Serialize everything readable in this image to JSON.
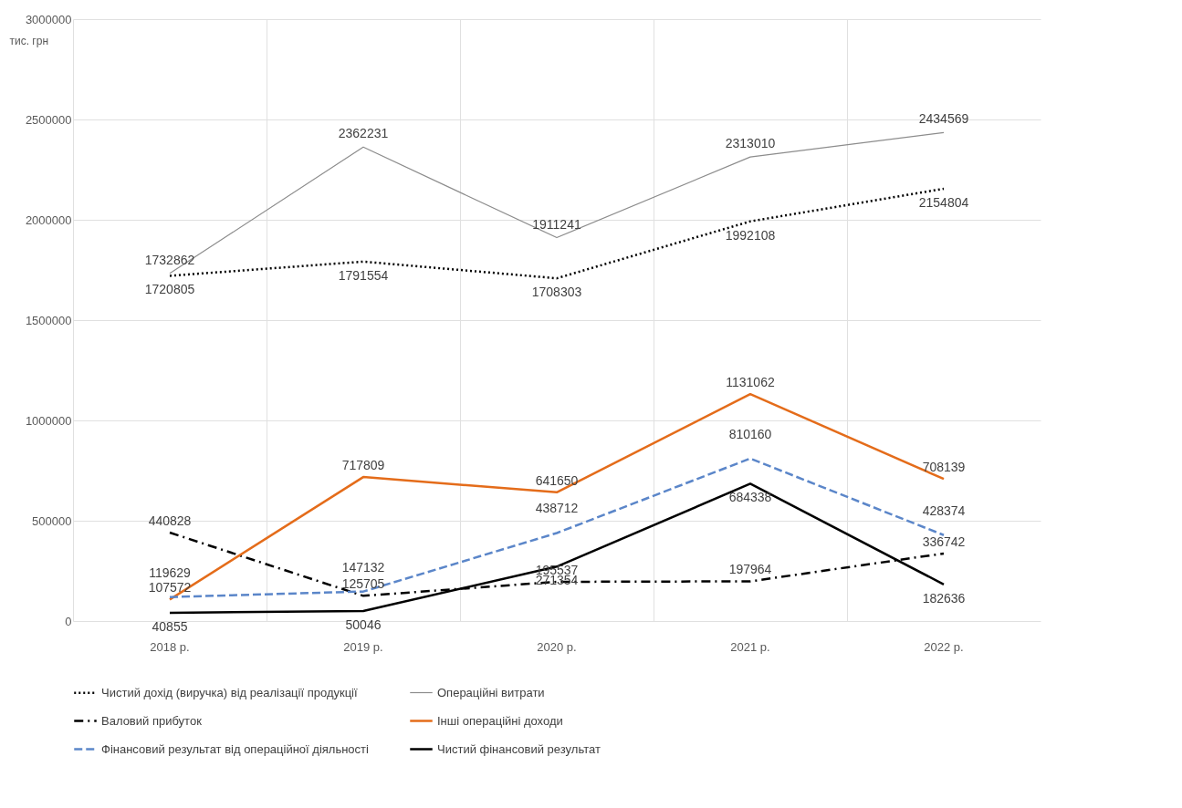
{
  "chart_data": {
    "type": "line",
    "ylabel": "тис. грн",
    "categories": [
      "2018 р.",
      "2019 р.",
      "2020 р.",
      "2021 р.",
      "2022 р."
    ],
    "series": [
      {
        "name": "Чистий дохід (виручка) від реалізації продукції",
        "color": "#000000",
        "line_style": "dotted",
        "values": [
          1720805,
          1791554,
          1708303,
          1992108,
          2154804
        ]
      },
      {
        "name": "Операційні витрати",
        "color": "#8c8c8c",
        "line_style": "solid",
        "values": [
          1732862,
          2362231,
          1911241,
          2313010,
          2434569
        ]
      },
      {
        "name": "Валовий прибуток",
        "color": "#000000",
        "line_style": "dashdot",
        "values": [
          440828,
          125705,
          195537,
          197964,
          336742
        ]
      },
      {
        "name": "Інші операційні доходи",
        "color": "#e46c1a",
        "line_style": "solid",
        "values": [
          107572,
          717809,
          641650,
          1131062,
          708139
        ]
      },
      {
        "name": "Фінансовий результат від операційної діяльності",
        "color": "#5b86c9",
        "line_style": "dashed",
        "values": [
          119629,
          147132,
          438712,
          810160,
          428374
        ]
      },
      {
        "name": "Чистий фінансовий результат",
        "color": "#000000",
        "line_style": "solid",
        "values": [
          40855,
          50046,
          271354,
          684338,
          182636
        ]
      }
    ],
    "ylim": [
      0,
      3000000
    ],
    "yticks": [
      0,
      500000,
      1000000,
      1500000,
      2000000,
      2500000,
      3000000
    ],
    "grid": true,
    "legend": "bottom",
    "marker": "none",
    "data_labels": true
  }
}
